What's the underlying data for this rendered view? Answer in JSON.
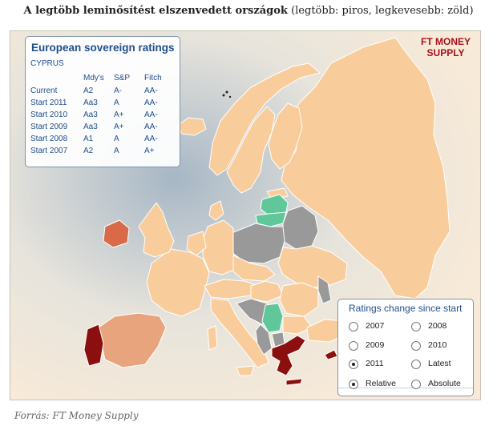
{
  "page": {
    "title_bold": "A legtöbb leminősítést elszenvedett országok",
    "title_rest": "(legtöbb: piros, legkevesebb: zöld)",
    "source": "Forrás: FT Money Supply"
  },
  "map": {
    "brand_line1": "FT MONEY",
    "brand_line2": "SUPPLY",
    "colors": {
      "sea": "#f7e8d6",
      "land_unrated": "#f9cc9b",
      "light_downgrade": "#f2b88d",
      "moderate_downgrade": "#e8a47c",
      "heavy_downgrade": "#d86a4a",
      "most_downgrades": "#8b0f0f",
      "upgrade": "#5fc79a",
      "no_data": "#999999",
      "border": "#ffffff"
    },
    "country_status": {
      "portugal": "most_downgrades",
      "greece": "most_downgrades",
      "ireland": "heavy_downgrade",
      "spain": "moderate_downgrade",
      "latvia": "upgrade",
      "lithuania": "upgrade",
      "serbia": "upgrade",
      "poland": "no_data",
      "belarus": "no_data",
      "hungary_area": "no_data",
      "balkans": "no_data"
    }
  },
  "ratings_panel": {
    "title": "European sovereign ratings",
    "country": "CYPRUS",
    "headers": [
      "",
      "Mdy's",
      "S&P",
      "Fitch"
    ],
    "rows": [
      [
        "Current",
        "A2",
        "A-",
        "AA-"
      ],
      [
        "Start 2011",
        "Aa3",
        "A",
        "AA-"
      ],
      [
        "Start 2010",
        "Aa3",
        "A+",
        "AA-"
      ],
      [
        "Start 2009",
        "Aa3",
        "A+",
        "AA-"
      ],
      [
        "Start 2008",
        "A1",
        "A",
        "AA-"
      ],
      [
        "Start 2007",
        "A2",
        "A",
        "A+"
      ]
    ]
  },
  "changes_panel": {
    "title": "Ratings change since start",
    "options": [
      {
        "label": "2007",
        "selected": false
      },
      {
        "label": "2008",
        "selected": false
      },
      {
        "label": "2009",
        "selected": false
      },
      {
        "label": "2010",
        "selected": false
      },
      {
        "label": "2011",
        "selected": true
      },
      {
        "label": "Latest",
        "selected": false
      }
    ],
    "mode_options": [
      {
        "label": "Relative",
        "selected": true
      },
      {
        "label": "Absolute",
        "selected": false
      }
    ]
  }
}
